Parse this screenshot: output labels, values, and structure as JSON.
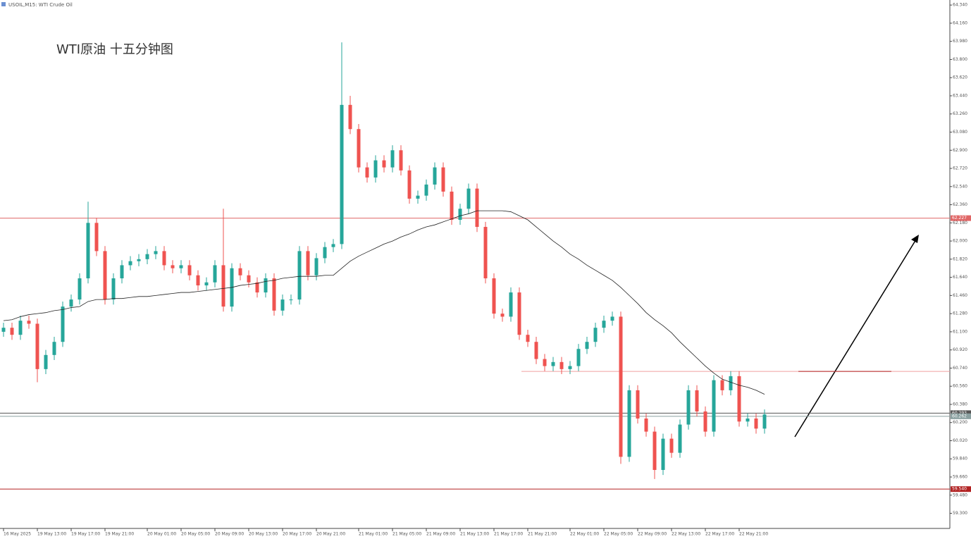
{
  "chart_data": {
    "type": "candlestick",
    "header": "USOIL,M15: WTI Crude Oil",
    "title": "WTI原油 十五分钟图",
    "categories": [
      "16 May 2025",
      null,
      null,
      null,
      "19 May 13:00",
      null,
      null,
      null,
      "19 May 17:00",
      null,
      null,
      null,
      "19 May 21:00",
      null,
      null,
      null,
      null,
      "20 May 01:00",
      null,
      null,
      null,
      "20 May 05:00",
      null,
      null,
      null,
      "20 May 09:00",
      null,
      null,
      null,
      "20 May 13:00",
      null,
      null,
      null,
      "20 May 17:00",
      null,
      null,
      null,
      "20 May 21:00",
      null,
      null,
      null,
      null,
      "21 May 01:00",
      null,
      null,
      null,
      "21 May 05:00",
      null,
      null,
      null,
      "21 May 09:00",
      null,
      null,
      null,
      "21 May 13:00",
      null,
      null,
      null,
      "21 May 17:00",
      null,
      null,
      null,
      "21 May 21:00",
      null,
      null,
      null,
      null,
      "22 May 01:00",
      null,
      null,
      null,
      "22 May 05:00",
      null,
      null,
      null,
      "22 May 09:00",
      null,
      null,
      null,
      "22 May 13:00",
      null,
      null,
      null,
      "22 May 17:00",
      null,
      null,
      null,
      "22 May 21:00",
      null,
      null,
      null
    ],
    "open": [
      61.1,
      61.14,
      61.07,
      61.21,
      61.18,
      60.73,
      60.87,
      61.0,
      61.35,
      61.42,
      61.63,
      62.18,
      61.9,
      61.42,
      61.63,
      61.76,
      61.8,
      61.82,
      61.87,
      61.9,
      61.76,
      61.73,
      61.76,
      61.66,
      61.56,
      61.59,
      61.76,
      61.35,
      61.73,
      61.66,
      61.59,
      61.49,
      61.63,
      61.31,
      61.42,
      61.42,
      61.9,
      61.66,
      61.83,
      61.94,
      61.97,
      63.35,
      63.11,
      62.73,
      62.63,
      62.8,
      62.73,
      62.9,
      62.7,
      62.42,
      62.45,
      62.56,
      62.73,
      62.49,
      62.21,
      62.32,
      62.52,
      62.14,
      61.63,
      61.28,
      61.25,
      61.49,
      61.07,
      61.0,
      60.83,
      60.76,
      60.8,
      60.73,
      60.76,
      60.93,
      61.0,
      61.14,
      61.21,
      61.25,
      59.86,
      60.52,
      60.24,
      60.11,
      59.73,
      60.04,
      59.9,
      60.18,
      60.52,
      60.31,
      60.11,
      60.62,
      60.52,
      60.66,
      60.21,
      60.24,
      60.14
    ],
    "high": [
      61.19,
      61.19,
      61.26,
      61.26,
      61.23,
      60.92,
      61.05,
      61.4,
      61.47,
      61.68,
      62.39,
      62.23,
      61.95,
      61.68,
      61.81,
      61.85,
      61.87,
      61.92,
      61.95,
      61.95,
      61.81,
      61.81,
      61.81,
      61.71,
      61.64,
      61.81,
      62.32,
      61.78,
      61.78,
      61.71,
      61.64,
      61.68,
      61.68,
      61.47,
      61.47,
      61.95,
      61.95,
      61.88,
      61.99,
      62.02,
      63.97,
      63.44,
      63.16,
      62.78,
      62.85,
      62.85,
      62.95,
      62.95,
      62.75,
      62.5,
      62.61,
      62.78,
      62.78,
      62.54,
      62.37,
      62.57,
      62.57,
      62.19,
      61.68,
      61.33,
      61.54,
      61.54,
      61.12,
      61.05,
      60.88,
      60.85,
      60.85,
      60.81,
      60.98,
      61.05,
      61.19,
      61.26,
      61.3,
      61.3,
      60.57,
      60.57,
      60.29,
      60.16,
      60.09,
      60.09,
      60.23,
      60.57,
      60.57,
      60.36,
      60.67,
      60.67,
      60.71,
      60.71,
      60.29,
      60.29,
      60.33
    ],
    "low": [
      61.05,
      61.02,
      61.02,
      61.13,
      60.6,
      60.68,
      60.82,
      60.95,
      61.3,
      61.37,
      61.58,
      61.85,
      61.37,
      61.37,
      61.58,
      61.71,
      61.75,
      61.77,
      61.82,
      61.71,
      61.68,
      61.68,
      61.61,
      61.51,
      61.51,
      61.54,
      61.3,
      61.3,
      61.61,
      61.54,
      61.44,
      61.44,
      61.26,
      61.26,
      61.37,
      61.37,
      61.61,
      61.61,
      61.78,
      61.89,
      61.92,
      63.06,
      62.68,
      62.58,
      62.58,
      62.68,
      62.68,
      62.65,
      62.37,
      62.37,
      62.4,
      62.51,
      62.44,
      62.16,
      62.16,
      62.27,
      62.09,
      61.58,
      61.23,
      61.2,
      61.2,
      61.02,
      60.95,
      60.78,
      60.71,
      60.71,
      60.68,
      60.68,
      60.71,
      60.88,
      60.95,
      61.09,
      61.16,
      59.79,
      59.81,
      60.19,
      60.06,
      59.64,
      59.68,
      59.85,
      59.85,
      60.13,
      60.26,
      60.06,
      60.06,
      60.47,
      60.47,
      60.16,
      60.16,
      60.09,
      60.09
    ],
    "close": [
      61.14,
      61.07,
      61.21,
      61.18,
      60.73,
      60.87,
      61.0,
      61.35,
      61.42,
      61.63,
      62.18,
      61.9,
      61.42,
      61.63,
      61.76,
      61.8,
      61.82,
      61.87,
      61.9,
      61.76,
      61.73,
      61.76,
      61.66,
      61.56,
      61.59,
      61.76,
      61.35,
      61.73,
      61.66,
      61.59,
      61.49,
      61.63,
      61.31,
      61.42,
      61.42,
      61.9,
      61.66,
      61.83,
      61.94,
      61.97,
      63.35,
      63.11,
      62.73,
      62.63,
      62.8,
      62.73,
      62.9,
      62.7,
      62.42,
      62.45,
      62.56,
      62.73,
      62.49,
      62.21,
      62.32,
      62.52,
      62.14,
      61.63,
      61.28,
      61.25,
      61.49,
      61.07,
      61.0,
      60.83,
      60.76,
      60.8,
      60.73,
      60.76,
      60.93,
      61.0,
      61.14,
      61.21,
      61.25,
      59.86,
      60.52,
      60.24,
      60.11,
      59.73,
      60.04,
      59.9,
      60.18,
      60.52,
      60.31,
      60.11,
      60.62,
      60.52,
      60.66,
      60.21,
      60.24,
      60.14,
      60.28
    ],
    "ma": [
      61.21,
      61.22,
      61.25,
      61.27,
      61.28,
      61.29,
      61.31,
      61.32,
      61.34,
      61.35,
      61.4,
      61.42,
      61.42,
      61.43,
      61.43,
      61.44,
      61.45,
      61.45,
      61.46,
      61.47,
      61.48,
      61.49,
      61.49,
      61.5,
      61.51,
      61.52,
      61.53,
      61.54,
      61.56,
      61.57,
      61.58,
      61.6,
      61.61,
      61.63,
      61.64,
      61.65,
      61.65,
      61.65,
      61.66,
      61.66,
      61.73,
      61.8,
      61.85,
      61.89,
      61.93,
      61.97,
      62.0,
      62.04,
      62.07,
      62.11,
      62.14,
      62.16,
      62.19,
      62.22,
      62.25,
      62.27,
      62.3,
      62.3,
      62.3,
      62.3,
      62.29,
      62.25,
      62.21,
      62.14,
      62.07,
      62.0,
      61.94,
      61.87,
      61.82,
      61.76,
      61.71,
      61.66,
      61.61,
      61.54,
      61.46,
      61.38,
      61.29,
      61.22,
      61.16,
      61.09,
      61.0,
      60.92,
      60.84,
      60.76,
      60.69,
      60.63,
      60.6,
      60.57,
      60.55,
      60.52,
      60.48
    ],
    "colors": {
      "up": "#26a69a",
      "down": "#ef5350",
      "ma": "#222222"
    },
    "ylim": [
      59.15,
      64.39
    ],
    "yticks": [
      {
        "value": 64.34,
        "label": "64.340"
      },
      {
        "value": 64.16,
        "label": "64.160"
      },
      {
        "value": 63.98,
        "label": "63.980"
      },
      {
        "value": 63.8,
        "label": "63.800"
      },
      {
        "value": 63.62,
        "label": "63.620"
      },
      {
        "value": 63.44,
        "label": "63.440"
      },
      {
        "value": 63.26,
        "label": "63.260"
      },
      {
        "value": 63.08,
        "label": "63.080"
      },
      {
        "value": 62.9,
        "label": "62.900"
      },
      {
        "value": 62.72,
        "label": "62.720"
      },
      {
        "value": 62.54,
        "label": "62.540"
      },
      {
        "value": 62.36,
        "label": "62.360"
      },
      {
        "value": 62.18,
        "label": "62.180"
      },
      {
        "value": 62.0,
        "label": "62.000"
      },
      {
        "value": 61.82,
        "label": "61.820"
      },
      {
        "value": 61.64,
        "label": "61.640"
      },
      {
        "value": 61.46,
        "label": "61.460"
      },
      {
        "value": 61.28,
        "label": "61.280"
      },
      {
        "value": 61.1,
        "label": "61.100"
      },
      {
        "value": 60.92,
        "label": "60.920"
      },
      {
        "value": 60.74,
        "label": "60.740"
      },
      {
        "value": 60.56,
        "label": "60.560"
      },
      {
        "value": 60.38,
        "label": "60.380"
      },
      {
        "value": 60.2,
        "label": "60.200"
      },
      {
        "value": 60.02,
        "label": "60.020"
      },
      {
        "value": 59.84,
        "label": "59.840"
      },
      {
        "value": 59.66,
        "label": "59.660"
      },
      {
        "value": 59.48,
        "label": "59.480"
      },
      {
        "value": 59.3,
        "label": "59.300"
      }
    ],
    "levels": [
      {
        "value": 62.227,
        "label": "62.227",
        "color": "#e06666"
      },
      {
        "value": 60.293,
        "label": "60.293",
        "color": "#555555"
      },
      {
        "value": 60.262,
        "label": "60.262",
        "color": "#8aa0a0"
      },
      {
        "value": 59.54,
        "label": "59.540",
        "color": "#b22222"
      },
      {
        "value": 60.707,
        "color": "#f0a0a0"
      },
      {
        "value": 60.707,
        "color": "#b22222"
      }
    ]
  }
}
